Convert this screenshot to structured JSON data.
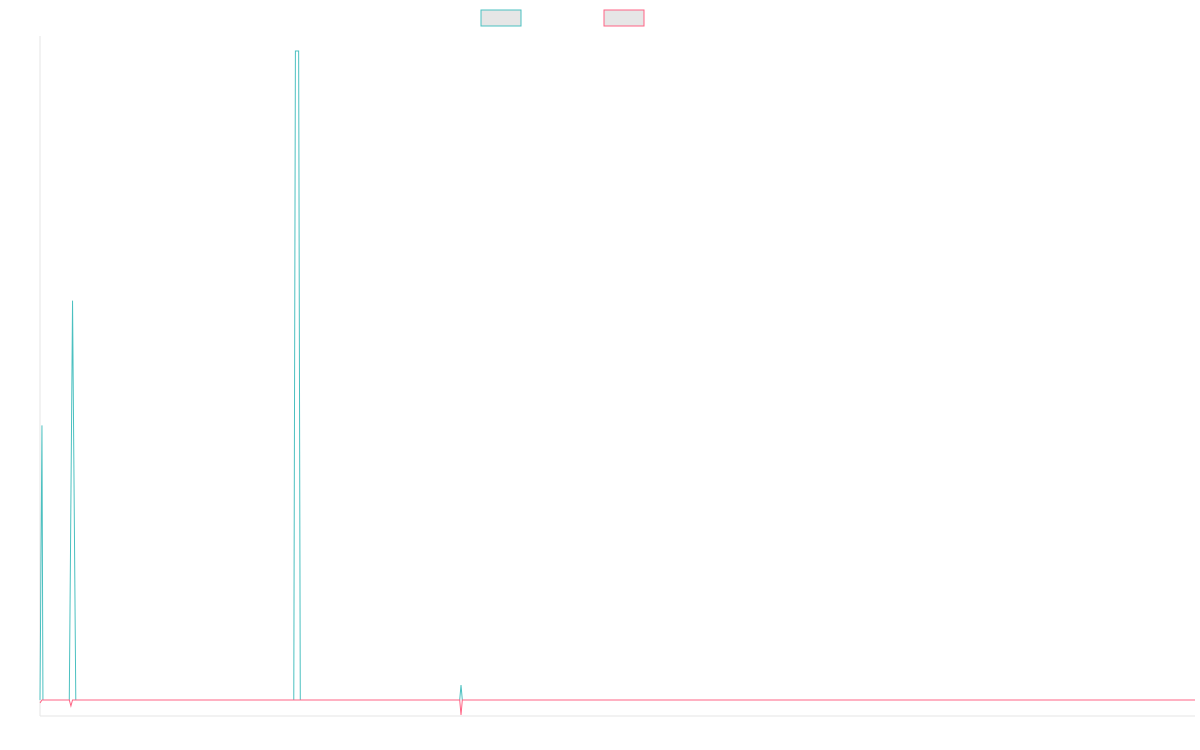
{
  "chart_data": {
    "type": "line",
    "title": "",
    "xlabel": "",
    "ylabel": "",
    "legend": {
      "position": "top-center"
    },
    "grid": false,
    "x_range": [
      0,
      355
    ],
    "y_range": [
      -1.6,
      66.5
    ],
    "series": [
      {
        "name": "",
        "color": "#4bc0c0",
        "fill": "#e6e6e6",
        "points": [
          [
            0,
            0
          ],
          [
            0.6,
            27.5
          ],
          [
            0.9,
            0
          ],
          [
            9,
            0
          ],
          [
            10,
            40
          ],
          [
            11,
            0
          ],
          [
            78,
            0
          ],
          [
            78.5,
            65
          ],
          [
            79.5,
            65
          ],
          [
            80,
            0
          ],
          [
            129,
            0
          ],
          [
            129.4,
            1.5
          ],
          [
            129.8,
            0
          ],
          [
            355,
            0
          ]
        ]
      },
      {
        "name": "",
        "color": "#ff6384",
        "fill": "#e6e6e6",
        "points": [
          [
            0,
            -0.3
          ],
          [
            0.6,
            0
          ],
          [
            9,
            0
          ],
          [
            9.5,
            -0.6
          ],
          [
            10,
            0
          ],
          [
            129,
            0
          ],
          [
            129.4,
            -1.5
          ],
          [
            129.8,
            0
          ],
          [
            355,
            0
          ]
        ]
      }
    ]
  }
}
